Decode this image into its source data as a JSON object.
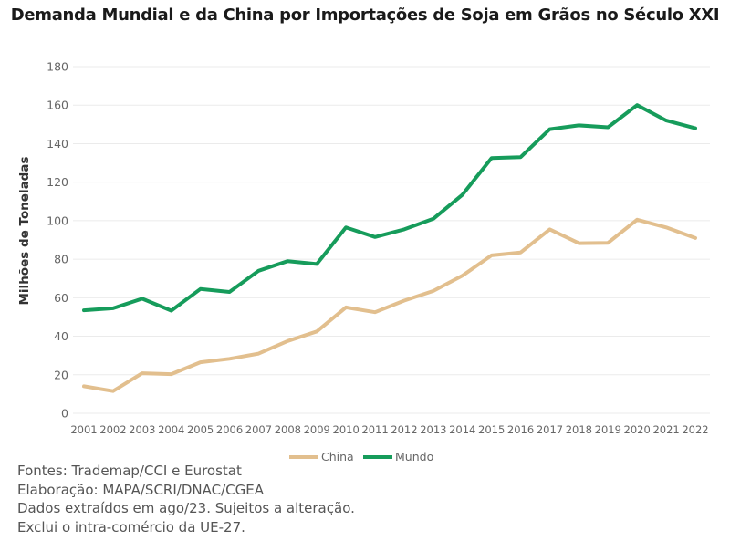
{
  "chart_data": {
    "type": "line",
    "title": "Demanda Mundial e da China por Importações de Soja em Grãos no Século XXI",
    "xlabel": "",
    "ylabel": "Milhões de Toneladas",
    "ylim": [
      0,
      180
    ],
    "yticks": [
      0,
      20,
      40,
      60,
      80,
      100,
      120,
      140,
      160,
      180
    ],
    "grid": true,
    "legend_position": "bottom-center",
    "x": [
      "2001",
      "2002",
      "2003",
      "2004",
      "2005",
      "2006",
      "2007",
      "2008",
      "2009",
      "2010",
      "2011",
      "2012",
      "2013",
      "2014",
      "2015",
      "2016",
      "2017",
      "2018",
      "2019",
      "2020",
      "2021",
      "2022"
    ],
    "series": [
      {
        "name": "China",
        "color": "#e2bf8e",
        "values": [
          14.0,
          11.5,
          20.8,
          20.3,
          26.5,
          28.3,
          31.0,
          37.5,
          42.5,
          55.0,
          52.5,
          58.5,
          63.5,
          71.5,
          82.0,
          83.5,
          95.5,
          88.3,
          88.5,
          100.5,
          96.5,
          91.0
        ]
      },
      {
        "name": "Mundo",
        "color": "#169c5b",
        "values": [
          53.5,
          54.5,
          59.5,
          53.3,
          64.5,
          63.0,
          74.0,
          79.0,
          77.5,
          96.5,
          91.5,
          95.5,
          101.0,
          113.5,
          132.5,
          133.0,
          147.5,
          149.5,
          148.5,
          160.0,
          152.0,
          148.0
        ]
      }
    ]
  },
  "notes": [
    "Fontes: Trademap/CCI e Eurostat",
    "Elaboração: MAPA/SCRI/DNAC/CGEA",
    "Dados extraídos em ago/23. Sujeitos a alteração.",
    "Exclui o intra-comércio da UE-27."
  ]
}
